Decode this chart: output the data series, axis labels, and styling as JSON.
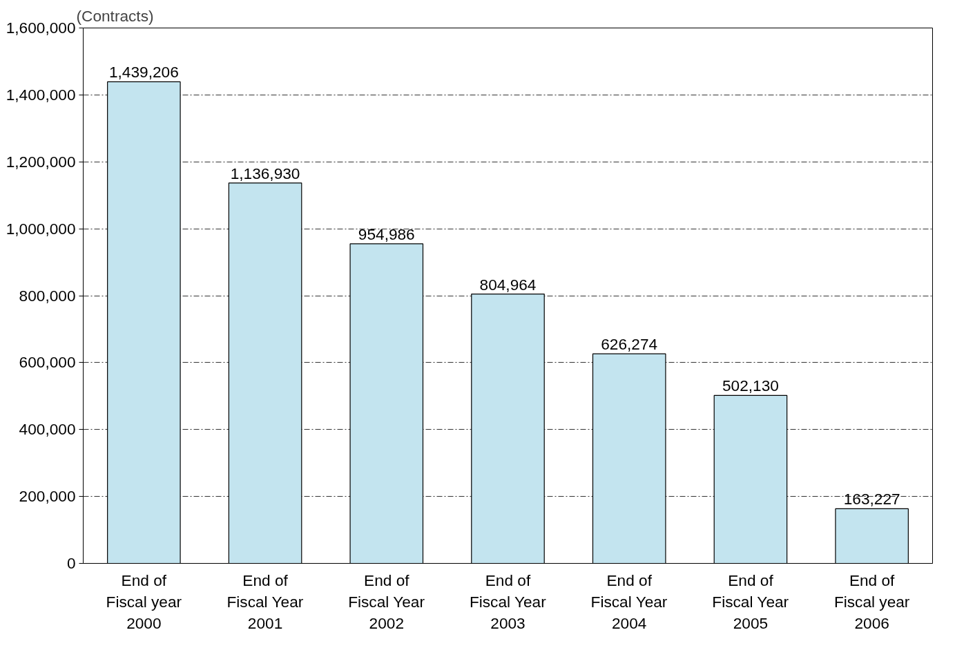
{
  "chart_data": {
    "type": "bar",
    "ylabel": "(Contracts)",
    "categories": [
      "End of\nFiscal year\n2000",
      "End of\nFiscal Year\n2001",
      "End of\nFiscal Year\n2002",
      "End of\nFiscal Year\n2003",
      "End of\nFiscal Year\n2004",
      "End of\nFiscal Year\n2005",
      "End of\nFiscal year\n2006"
    ],
    "values": [
      1439206,
      1136930,
      954986,
      804964,
      626274,
      502130,
      163227
    ],
    "color": "#c3e4ef",
    "ylim": [
      0,
      1600000
    ],
    "yticks": [
      {
        "value": 0,
        "label": "0"
      },
      {
        "value": 200000,
        "label": "200,000"
      },
      {
        "value": 400000,
        "label": "400,000"
      },
      {
        "value": 600000,
        "label": "600,000"
      },
      {
        "value": 800000,
        "label": "800,000"
      },
      {
        "value": 1000000,
        "label": "1,000,000"
      },
      {
        "value": 1200000,
        "label": "1,200,000"
      },
      {
        "value": 1400000,
        "label": "1,400,000"
      },
      {
        "value": 1600000,
        "label": "1,600,000"
      }
    ],
    "value_labels": [
      "1,439,206",
      "1,136,930",
      "954,986",
      "804,964",
      "626,274",
      "502,130",
      "163,227"
    ],
    "grid": "y"
  }
}
